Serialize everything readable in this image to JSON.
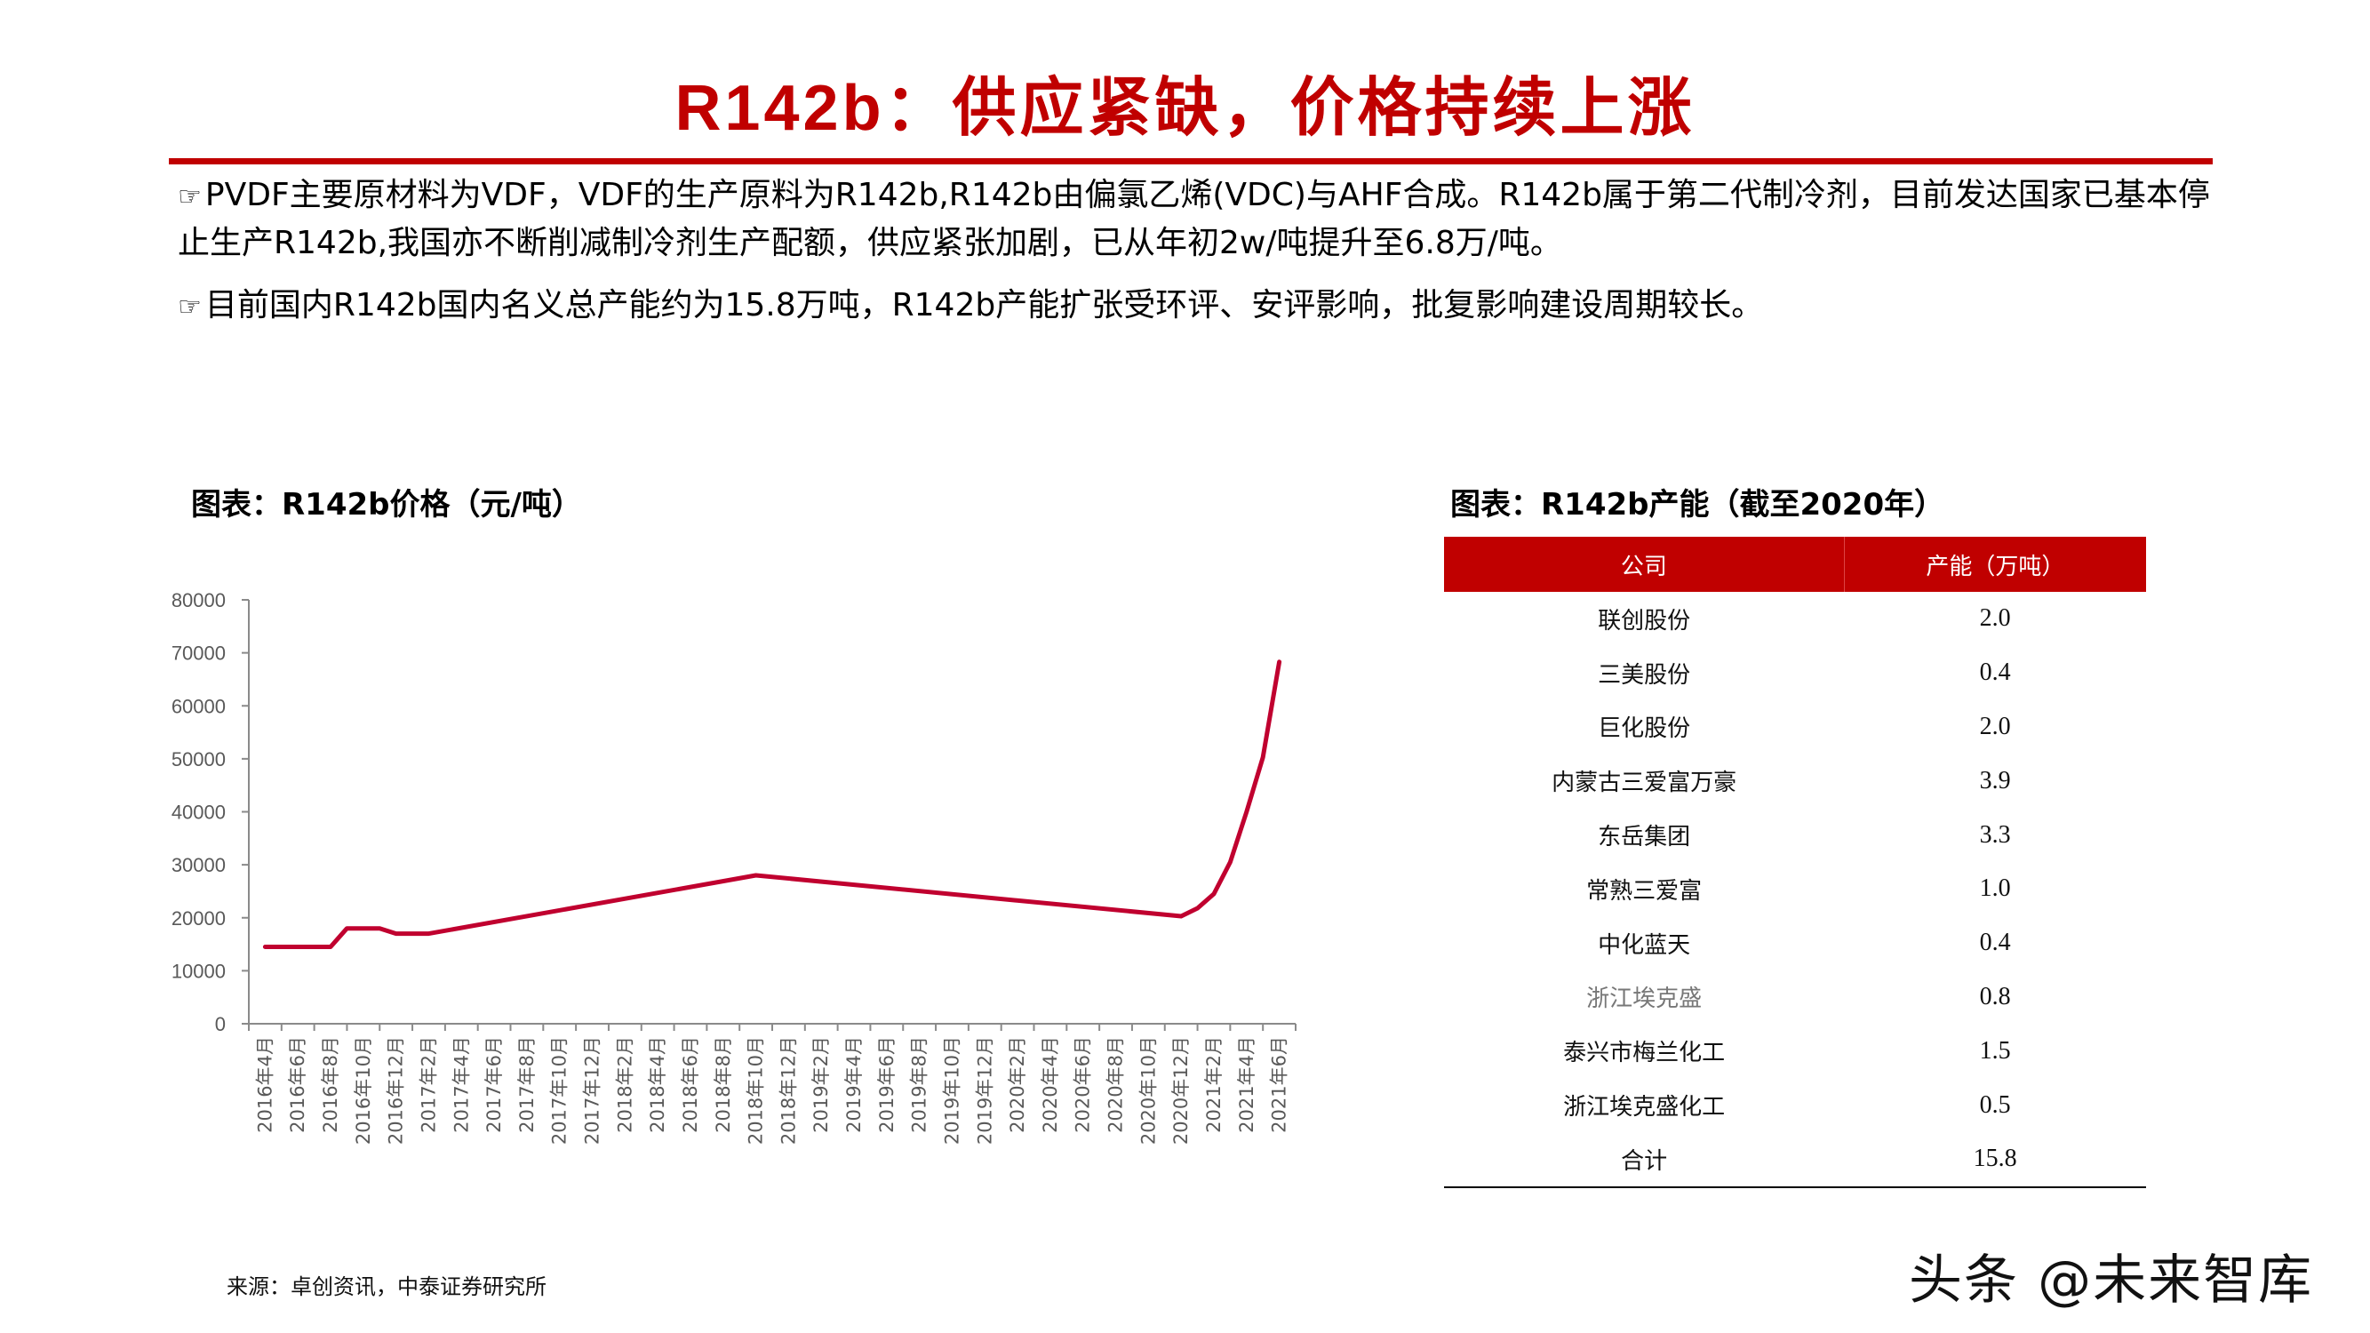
{
  "page": {
    "title": "R142b：供应紧缺，价格持续上涨",
    "accent_color": "#c00000",
    "bullets": [
      {
        "icon": "pointing-hand-icon",
        "text": "PVDF主要原材料为VDF，VDF的生产原料为R142b,R142b由偏氯乙烯(VDC)与AHF合成。R142b属于第二代制冷剂，目前发达国家已基本停止生产R142b,我国亦不断削减制冷剂生产配额，供应紧张加剧，已从年初2w/吨提升至6.8万/吨。"
      },
      {
        "icon": "pointing-hand-icon",
        "text": "目前国内R142b国内名义总产能约为15.8万吨，R142b产能扩张受环评、安评影响，批复影响建设周期较长。"
      }
    ],
    "source": "来源：卓创资讯，中泰证券研究所",
    "watermark": "头条 @未来智库"
  },
  "chart_data": [
    {
      "type": "line",
      "title": "图表：R142b价格（元/吨）",
      "xlabel": "",
      "ylabel": "",
      "ylim": [
        0,
        80000
      ],
      "yticks": [
        0,
        10000,
        20000,
        30000,
        40000,
        50000,
        60000,
        70000,
        80000
      ],
      "grid": false,
      "legend": null,
      "line_color": "#c0002f",
      "categories": [
        "2016年4月",
        "2016年6月",
        "2016年8月",
        "2016年10月",
        "2016年12月",
        "2017年2月",
        "2017年4月",
        "2017年6月",
        "2017年8月",
        "2017年10月",
        "2017年12月",
        "2018年2月",
        "2018年4月",
        "2018年6月",
        "2018年8月",
        "2018年10月",
        "2018年12月",
        "2019年2月",
        "2019年4月",
        "2019年6月",
        "2019年8月",
        "2019年10月",
        "2019年12月",
        "2020年2月",
        "2020年4月",
        "2020年6月",
        "2020年8月",
        "2020年10月",
        "2020年12月",
        "2021年2月",
        "2021年4月",
        "2021年6月"
      ],
      "series": [
        {
          "name": "R142b价格",
          "points": [
            {
              "x": "2016-04",
              "y": 14500
            },
            {
              "x": "2016-08",
              "y": 14500
            },
            {
              "x": "2016-09",
              "y": 18000
            },
            {
              "x": "2016-11",
              "y": 18000
            },
            {
              "x": "2016-12",
              "y": 17000
            },
            {
              "x": "2017-02",
              "y": 17000
            },
            {
              "x": "2018-10",
              "y": 28000
            },
            {
              "x": "2020-12",
              "y": 20300
            },
            {
              "x": "2021-01",
              "y": 21800
            },
            {
              "x": "2021-02",
              "y": 24500
            },
            {
              "x": "2021-03",
              "y": 30500
            },
            {
              "x": "2021-04",
              "y": 40000
            },
            {
              "x": "2021-05",
              "y": 50300
            },
            {
              "x": "2021-06",
              "y": 68300
            }
          ]
        }
      ]
    },
    {
      "type": "table",
      "title": "图表：R142b产能（截至2020年）",
      "columns": [
        "公司",
        "产能（万吨）"
      ],
      "rows": [
        [
          "联创股份",
          "2.0"
        ],
        [
          "三美股份",
          "0.4"
        ],
        [
          "巨化股份",
          "2.0"
        ],
        [
          "内蒙古三爱富万豪",
          "3.9"
        ],
        [
          "东岳集团",
          "3.3"
        ],
        [
          "常熟三爱富",
          "1.0"
        ],
        [
          "中化蓝天",
          "0.4"
        ],
        [
          "浙江埃克盛",
          "0.8"
        ],
        [
          "泰兴市梅兰化工",
          "1.5"
        ],
        [
          "浙江埃克盛化工",
          "0.5"
        ],
        [
          "合计",
          "15.8"
        ]
      ]
    }
  ]
}
